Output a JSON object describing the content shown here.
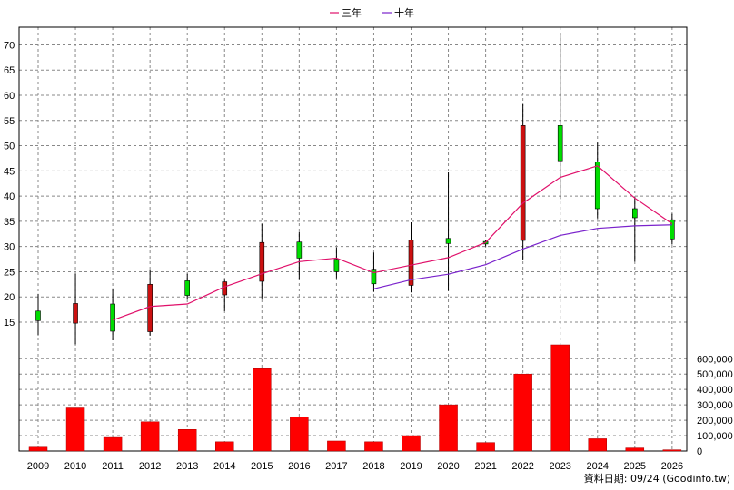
{
  "chart_data": {
    "type": "candlestick",
    "title": "",
    "legend": {
      "placement": "top-center",
      "items": [
        {
          "name": "三年",
          "color": "#e0106a"
        },
        {
          "name": "十年",
          "color": "#7a22cc"
        }
      ]
    },
    "categories": [
      "2009",
      "2010",
      "2011",
      "2012",
      "2013",
      "2014",
      "2015",
      "2016",
      "2017",
      "2018",
      "2019",
      "2020",
      "2021",
      "2022",
      "2023",
      "2024",
      "2025",
      "2026"
    ],
    "price_axis": {
      "ticks": [
        15,
        20,
        25,
        30,
        35,
        40,
        45,
        50,
        55,
        60,
        65,
        70
      ],
      "ylim": [
        10.5,
        73.5
      ],
      "position": "left",
      "grid": true
    },
    "volume_axis": {
      "ticks": [
        0,
        100000,
        200000,
        300000,
        400000,
        500000,
        600000
      ],
      "tick_labels": [
        "0",
        "100,000",
        "200,000",
        "300,000",
        "400,000",
        "500,000",
        "600,000"
      ],
      "ylim": [
        0,
        690000
      ],
      "position": "right",
      "grid": true
    },
    "candles": [
      {
        "year": "2009",
        "open": 15.3,
        "close": 17.2,
        "high": 20.6,
        "low": 12.4
      },
      {
        "year": "2010",
        "open": 18.7,
        "close": 14.8,
        "high": 24.6,
        "low": 10.6
      },
      {
        "year": "2011",
        "open": 13.2,
        "close": 18.6,
        "high": 21.7,
        "low": 11.4
      },
      {
        "year": "2012",
        "open": 22.5,
        "close": 13.1,
        "high": 25.4,
        "low": 12.3
      },
      {
        "year": "2013",
        "open": 20.3,
        "close": 23.2,
        "high": 24.6,
        "low": 19.5
      },
      {
        "year": "2014",
        "open": 23.0,
        "close": 20.4,
        "high": 23.4,
        "low": 17.2
      },
      {
        "year": "2015",
        "open": 30.8,
        "close": 23.1,
        "high": 34.5,
        "low": 19.7
      },
      {
        "year": "2016",
        "open": 27.7,
        "close": 30.9,
        "high": 32.9,
        "low": 23.4
      },
      {
        "year": "2017",
        "open": 25.0,
        "close": 27.5,
        "high": 29.8,
        "low": 23.7
      },
      {
        "year": "2018",
        "open": 22.6,
        "close": 25.5,
        "high": 28.8,
        "low": 21.0
      },
      {
        "year": "2019",
        "open": 31.3,
        "close": 22.3,
        "high": 34.8,
        "low": 20.9
      },
      {
        "year": "2020",
        "open": 30.6,
        "close": 31.6,
        "high": 44.7,
        "low": 21.2
      },
      {
        "year": "2021",
        "open": 30.5,
        "close": 31.0,
        "high": 31.3,
        "low": 30.0
      },
      {
        "year": "2022",
        "open": 54.0,
        "close": 31.2,
        "high": 58.2,
        "low": 27.4
      },
      {
        "year": "2023",
        "open": 47.0,
        "close": 54.0,
        "high": 72.4,
        "low": 39.4
      },
      {
        "year": "2024",
        "open": 37.5,
        "close": 46.8,
        "high": 50.6,
        "low": 35.6
      },
      {
        "year": "2025",
        "open": 35.7,
        "close": 37.5,
        "high": 39.8,
        "low": 27.0
      },
      {
        "year": "2026",
        "open": 31.5,
        "close": 35.3,
        "high": 36.5,
        "low": 30.4
      }
    ],
    "series": [
      {
        "name": "三年",
        "color": "#e0106a",
        "x": [
          "2011",
          "2012",
          "2013",
          "2014",
          "2015",
          "2016",
          "2017",
          "2018",
          "2019",
          "2020",
          "2021",
          "2022",
          "2023",
          "2024",
          "2025",
          "2026"
        ],
        "values": [
          15.4,
          18.1,
          18.6,
          22.0,
          24.6,
          27.0,
          27.7,
          24.8,
          26.3,
          27.8,
          30.8,
          38.6,
          43.7,
          46.0,
          39.6,
          34.5
        ]
      },
      {
        "name": "十年",
        "color": "#7a22cc",
        "x": [
          "2018",
          "2019",
          "2020",
          "2021",
          "2022",
          "2023",
          "2024",
          "2025",
          "2026"
        ],
        "values": [
          21.6,
          23.4,
          24.5,
          26.4,
          29.5,
          32.2,
          33.6,
          34.1,
          34.3
        ]
      }
    ],
    "volume": [
      25000,
      280000,
      88000,
      190000,
      140000,
      60000,
      535000,
      220000,
      65000,
      60000,
      100000,
      300000,
      55000,
      500000,
      690000,
      80000,
      20000,
      8000
    ],
    "colors": {
      "up": "#00dd00",
      "down": "#cc1111",
      "volume": "#ff0000",
      "grid": "#888888"
    }
  },
  "footer": {
    "credit": "資料日期: 09/24 (Goodinfo.tw)"
  }
}
